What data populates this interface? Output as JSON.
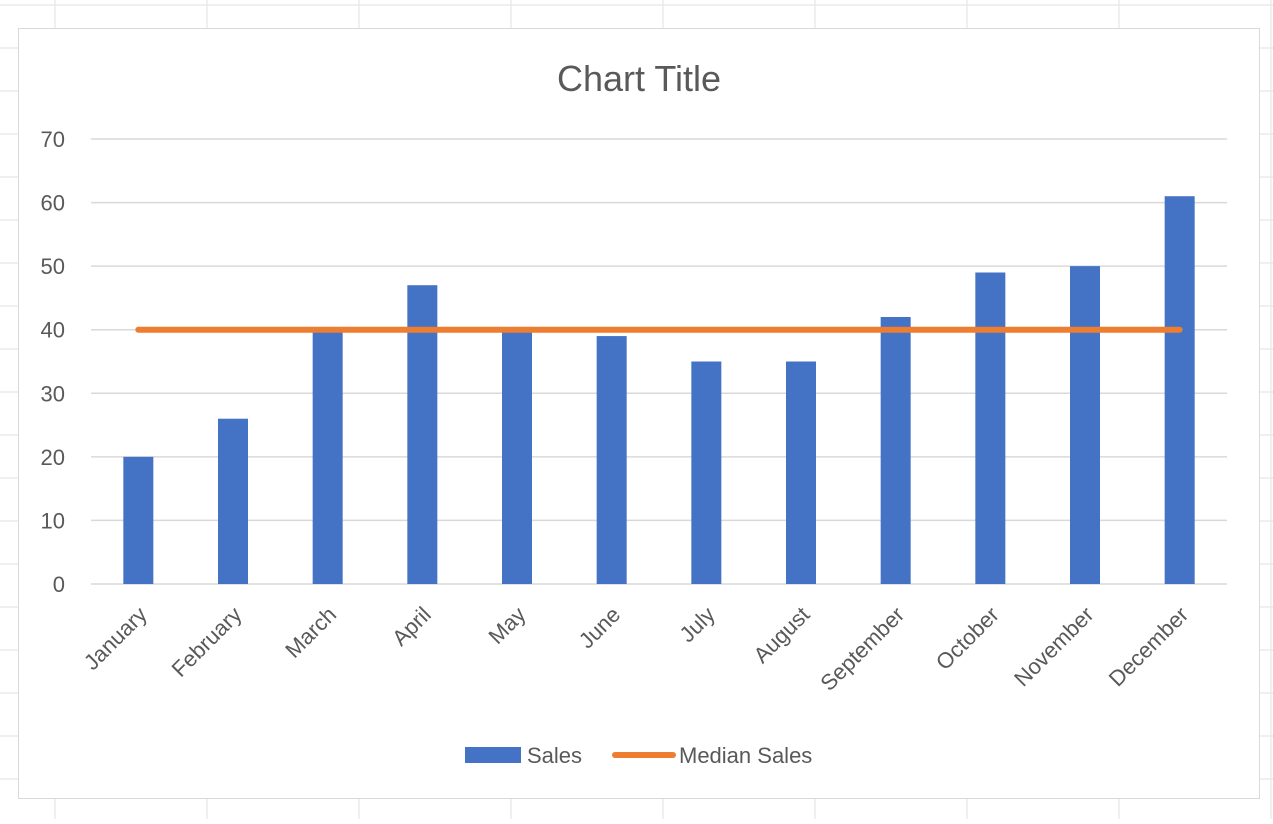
{
  "chart_data": {
    "type": "bar",
    "title": "Chart Title",
    "xlabel": "",
    "ylabel": "",
    "categories": [
      "January",
      "February",
      "March",
      "April",
      "May",
      "June",
      "July",
      "August",
      "September",
      "October",
      "November",
      "December"
    ],
    "series": [
      {
        "name": "Sales",
        "type": "bar",
        "color": "#4472C4",
        "values": [
          20,
          26,
          40,
          47,
          40,
          39,
          35,
          35,
          42,
          49,
          50,
          61
        ]
      },
      {
        "name": "Median Sales",
        "type": "line",
        "color": "#ED7D31",
        "values": [
          40,
          40,
          40,
          40,
          40,
          40,
          40,
          40,
          40,
          40,
          40,
          40
        ]
      }
    ],
    "ylim": [
      0,
      70
    ],
    "yticks": [
      0,
      10,
      20,
      30,
      40,
      50,
      60,
      70
    ],
    "grid": true,
    "legend_position": "bottom",
    "colors": {
      "gridline": "#d9d9d9",
      "text": "#595959",
      "sheet_grid": "#e2e2e2"
    }
  }
}
